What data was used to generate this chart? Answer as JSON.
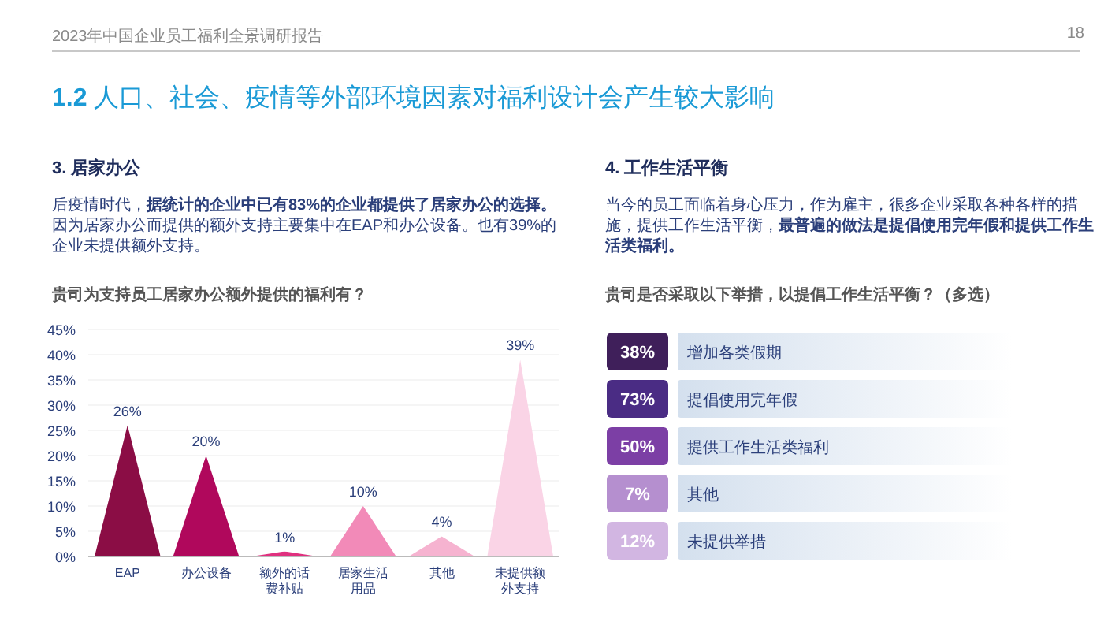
{
  "chart_data": [
    {
      "type": "bar",
      "title": "3. 居家办公",
      "subtitle": "贵司为支持员工居家办公额外提供的福利有？",
      "annotations": [
        "2023年中国企业员工福利全景调研报告",
        "18",
        "**1.2** 人口、社会、疫情等外部环境因素对福利设计会产生较大影响",
        "后疫情时代，**据统计的企业中已有83%的企业都提供了居家办公的选择。**因为居家办公而提供的额外支持主要集中在EAP和办公设备。也有39%的企业未提供额外支持。"
      ],
      "categories": [
        "EAP",
        "办公设备",
        "额外的话费补贴",
        "居家生活用品",
        "其他",
        "未提供额外支持"
      ],
      "values": [
        26,
        20,
        1,
        10,
        4,
        39
      ],
      "value_labels": [
        "26%",
        "20%",
        "1%",
        "10%",
        "4%",
        "39%"
      ],
      "colors": [
        "#8b0d45",
        "#b0085c",
        "#e0307f",
        "#f28ab8",
        "#f6b3d0",
        "#fad4e6"
      ],
      "ylim": [
        0,
        45
      ],
      "yticks": [
        {
          "value": 0,
          "label": "0%"
        },
        {
          "value": 5,
          "label": "5%"
        },
        {
          "value": 10,
          "label": "10%"
        },
        {
          "value": 15,
          "label": "15%"
        },
        {
          "value": 20,
          "label": "20%"
        },
        {
          "value": 25,
          "label": "25%"
        },
        {
          "value": 30,
          "label": "30%"
        },
        {
          "value": 35,
          "label": "35%"
        },
        {
          "value": 40,
          "label": "40%"
        },
        {
          "value": 45,
          "label": "45%"
        }
      ],
      "grid": "y"
    },
    {
      "type": "other",
      "title": "4. 工作生活平衡",
      "subtitle": "贵司是否采取以下举措，以提倡工作生活平衡？（多选）",
      "annotations": [
        "当今的员工面临着身心压力，作为雇主，很多企业采取各种各样的措施，提供工作生活平衡，**最普遍的做法是提倡使用完年假和提供工作生活类福利。**"
      ],
      "categories": [
        "增加各类假期",
        "提倡使用完年假",
        "提供工作生活类福利",
        "其他",
        "未提供举措"
      ],
      "value_labels": [
        "38%",
        "73%",
        "50%",
        "7%",
        "12%"
      ],
      "colors": [
        "#3f1f5a",
        "#4a2c84",
        "#7c3fa5",
        "#b58fcf",
        "#d2b6e2"
      ]
    }
  ]
}
